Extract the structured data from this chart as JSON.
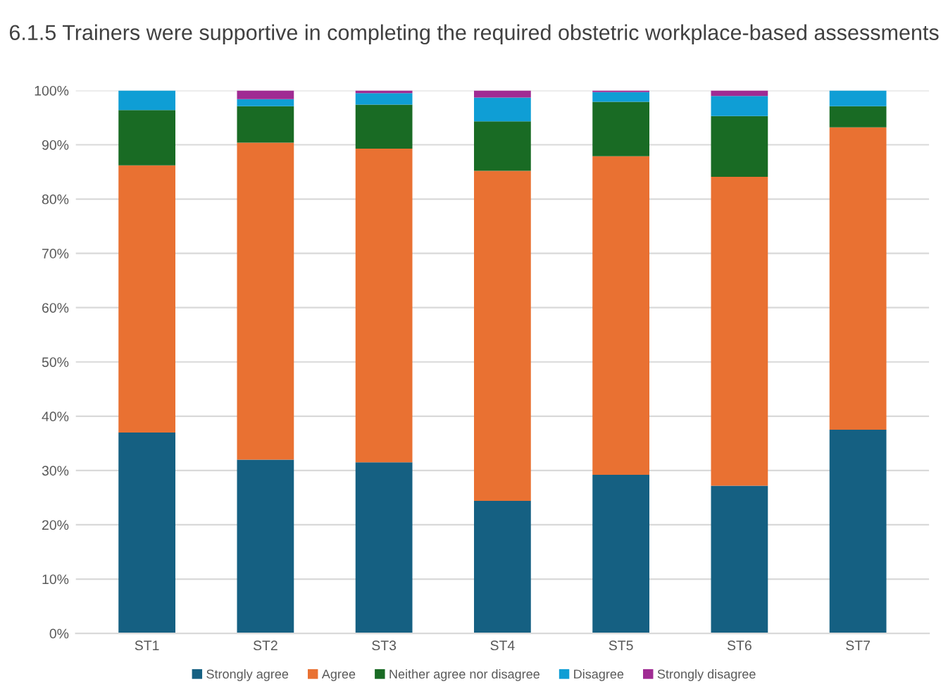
{
  "chart_data": {
    "type": "bar",
    "title": "6.1.5 Trainers were supportive in completing the required obstetric workplace-based assessments",
    "categories": [
      "ST1",
      "ST2",
      "ST3",
      "ST4",
      "ST5",
      "ST6",
      "ST7"
    ],
    "stacked": true,
    "series": [
      {
        "name": "Strongly agree",
        "color": "#156082",
        "values": [
          37.0,
          32.0,
          31.5,
          24.4,
          29.2,
          27.2,
          37.5
        ]
      },
      {
        "name": "Agree",
        "color": "#e97132",
        "values": [
          49.2,
          58.4,
          57.8,
          60.8,
          58.7,
          56.9,
          55.7
        ]
      },
      {
        "name": "Neither agree nor disagree",
        "color": "#196b24",
        "values": [
          10.2,
          6.7,
          8.1,
          9.1,
          10.0,
          11.2,
          3.9
        ]
      },
      {
        "name": "Disagree",
        "color": "#0f9ed5",
        "values": [
          3.6,
          1.3,
          2.1,
          4.4,
          1.8,
          3.7,
          2.9
        ]
      },
      {
        "name": "Strongly disagree",
        "color": "#a02b93",
        "values": [
          0,
          1.6,
          0.5,
          1.3,
          0.3,
          1.0,
          0
        ]
      }
    ],
    "ylim": [
      0,
      100
    ],
    "yticks": [
      {
        "value": 0,
        "label": "0%"
      },
      {
        "value": 10,
        "label": "10%"
      },
      {
        "value": 20,
        "label": "20%"
      },
      {
        "value": 30,
        "label": "30%"
      },
      {
        "value": 40,
        "label": "40%"
      },
      {
        "value": 50,
        "label": "50%"
      },
      {
        "value": 60,
        "label": "60%"
      },
      {
        "value": 70,
        "label": "70%"
      },
      {
        "value": 80,
        "label": "80%"
      },
      {
        "value": 90,
        "label": "90%"
      },
      {
        "value": 100,
        "label": "100%"
      }
    ],
    "grid": "y",
    "legend": "bottom"
  }
}
